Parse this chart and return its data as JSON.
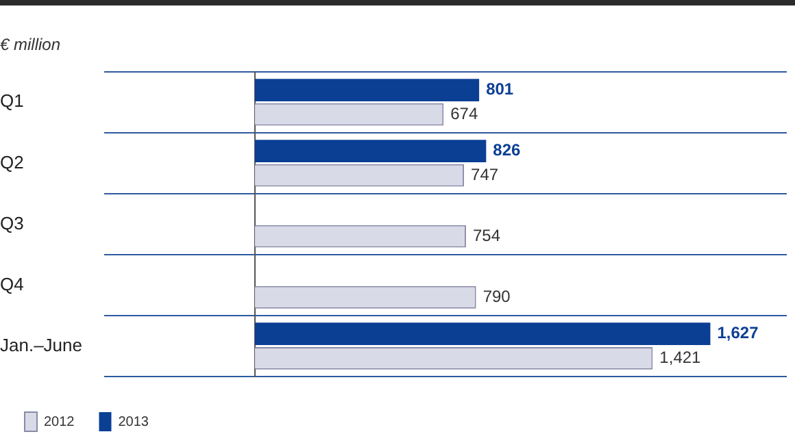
{
  "chart_data": {
    "type": "bar",
    "orientation": "horizontal",
    "title": "€ million",
    "categories": [
      "Q1",
      "Q2",
      "Q3",
      "Q4",
      "Jan.–June"
    ],
    "series": [
      {
        "name": "2013",
        "color": "#0b3f94",
        "values": [
          801,
          826,
          null,
          null,
          1627
        ],
        "value_labels": [
          "801",
          "826",
          null,
          null,
          "1,627"
        ]
      },
      {
        "name": "2012",
        "color": "#d9dae8",
        "values": [
          674,
          747,
          754,
          790,
          1421
        ],
        "value_labels": [
          "674",
          "747",
          "754",
          "790",
          "1,421"
        ]
      }
    ],
    "xlim": [
      0,
      1900
    ],
    "tick_labels": "y",
    "grid": "y",
    "legend": "bottom left"
  }
}
